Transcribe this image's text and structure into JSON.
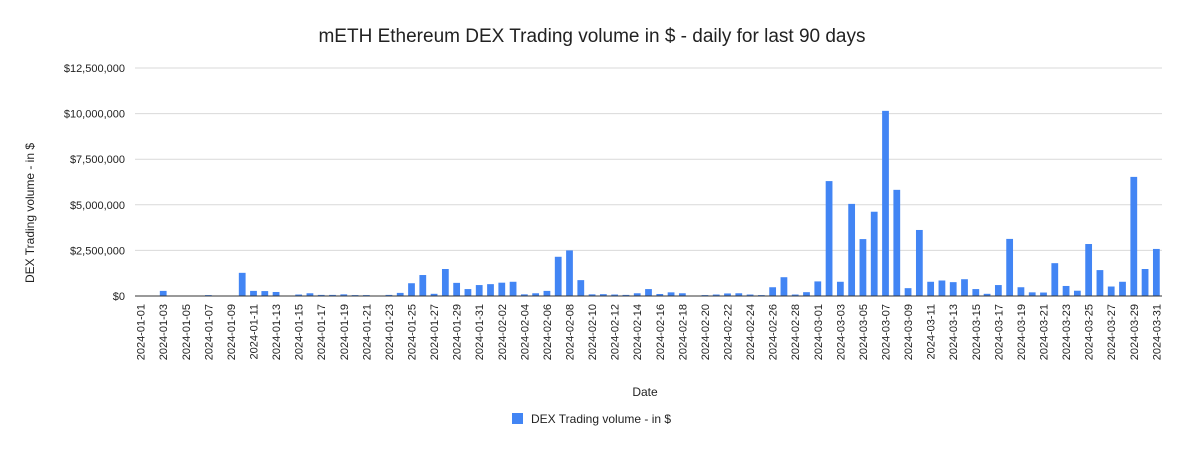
{
  "chart_data": {
    "type": "bar",
    "title": "mETH Ethereum DEX Trading volume in $ - daily for last 90 days",
    "xlabel": "Date",
    "ylabel": "DEX Trading volume - in $",
    "ylim": [
      0,
      12500000
    ],
    "yticks": [
      0,
      2500000,
      5000000,
      7500000,
      10000000,
      12500000
    ],
    "ytick_labels": [
      "$0",
      "$2,500,000",
      "$5,000,000",
      "$7,500,000",
      "$10,000,000",
      "$12,500,000"
    ],
    "grid": true,
    "legend_position": "bottom",
    "color": "#4285f4",
    "categories": [
      "2024-01-01",
      "2024-01-02",
      "2024-01-03",
      "2024-01-04",
      "2024-01-05",
      "2024-01-06",
      "2024-01-07",
      "2024-01-08",
      "2024-01-09",
      "2024-01-10",
      "2024-01-11",
      "2024-01-12",
      "2024-01-13",
      "2024-01-14",
      "2024-01-15",
      "2024-01-16",
      "2024-01-17",
      "2024-01-18",
      "2024-01-19",
      "2024-01-20",
      "2024-01-21",
      "2024-01-22",
      "2024-01-23",
      "2024-01-24",
      "2024-01-25",
      "2024-01-26",
      "2024-01-27",
      "2024-01-28",
      "2024-01-29",
      "2024-01-30",
      "2024-01-31",
      "2024-02-01",
      "2024-02-02",
      "2024-02-03",
      "2024-02-04",
      "2024-02-05",
      "2024-02-06",
      "2024-02-07",
      "2024-02-08",
      "2024-02-09",
      "2024-02-10",
      "2024-02-11",
      "2024-02-12",
      "2024-02-13",
      "2024-02-14",
      "2024-02-15",
      "2024-02-16",
      "2024-02-17",
      "2024-02-18",
      "2024-02-19",
      "2024-02-20",
      "2024-02-21",
      "2024-02-22",
      "2024-02-23",
      "2024-02-24",
      "2024-02-25",
      "2024-02-26",
      "2024-02-27",
      "2024-02-28",
      "2024-02-29",
      "2024-03-01",
      "2024-03-02",
      "2024-03-03",
      "2024-03-04",
      "2024-03-05",
      "2024-03-06",
      "2024-03-07",
      "2024-03-08",
      "2024-03-09",
      "2024-03-10",
      "2024-03-11",
      "2024-03-12",
      "2024-03-13",
      "2024-03-14",
      "2024-03-15",
      "2024-03-16",
      "2024-03-17",
      "2024-03-18",
      "2024-03-19",
      "2024-03-20",
      "2024-03-21",
      "2024-03-22",
      "2024-03-23",
      "2024-03-24",
      "2024-03-25",
      "2024-03-26",
      "2024-03-27",
      "2024-03-28",
      "2024-03-29",
      "2024-03-30",
      "2024-03-31"
    ],
    "series": [
      {
        "name": "DEX Trading volume - in $",
        "values": [
          0,
          0,
          280000,
          0,
          0,
          0,
          50000,
          0,
          0,
          1270000,
          280000,
          270000,
          220000,
          0,
          80000,
          150000,
          60000,
          60000,
          90000,
          50000,
          50000,
          0,
          60000,
          170000,
          700000,
          1150000,
          120000,
          1480000,
          720000,
          380000,
          600000,
          650000,
          730000,
          780000,
          90000,
          150000,
          280000,
          2150000,
          2500000,
          870000,
          90000,
          100000,
          80000,
          60000,
          150000,
          380000,
          110000,
          200000,
          150000,
          0,
          50000,
          80000,
          140000,
          150000,
          80000,
          50000,
          480000,
          1030000,
          80000,
          210000,
          800000,
          6300000,
          780000,
          5050000,
          3120000,
          4620000,
          10150000,
          5820000,
          430000,
          3620000,
          780000,
          850000,
          760000,
          920000,
          380000,
          120000,
          600000,
          3130000,
          480000,
          200000,
          190000,
          1800000,
          550000,
          290000,
          2850000,
          1420000,
          520000,
          780000,
          6530000,
          1480000,
          2580000
        ]
      }
    ]
  }
}
